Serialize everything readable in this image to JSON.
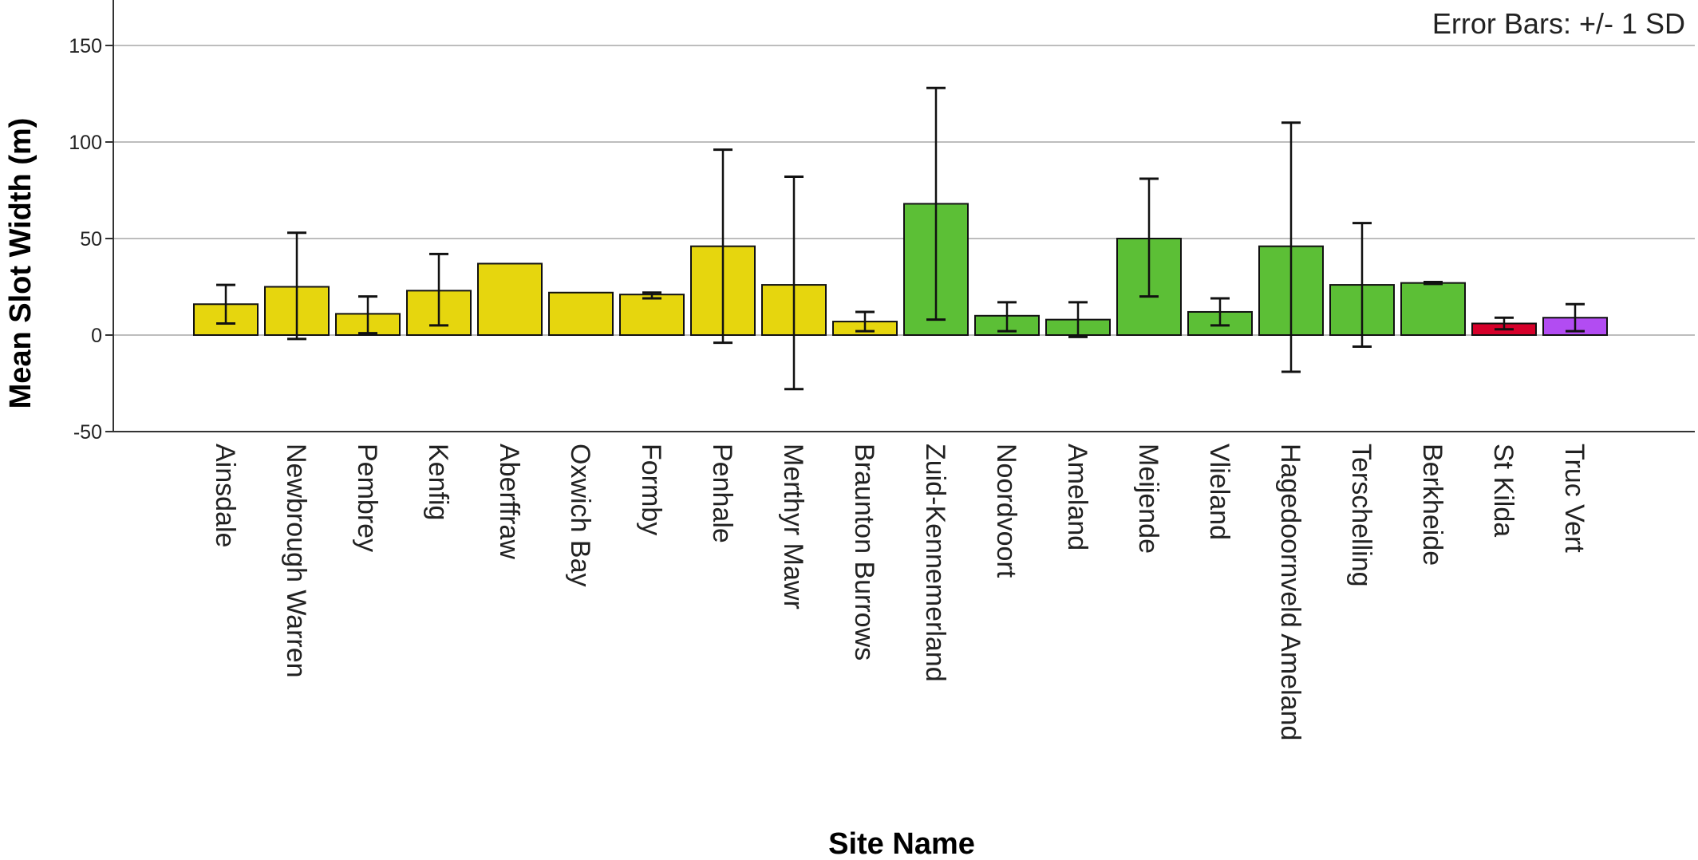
{
  "chart_data": {
    "type": "bar",
    "xlabel": "Site Name",
    "ylabel": "Mean Slot Width (m)",
    "annotation": "Error Bars: +/- 1 SD",
    "ylim": [
      -50,
      175
    ],
    "yticks": [
      -50,
      0,
      50,
      100,
      150
    ],
    "grid": true,
    "categories": [
      "Ainsdale",
      "Newbrough Warren",
      "Pembrey",
      "Kenfig",
      "Aberffraw",
      "Oxwich Bay",
      "Formby",
      "Penhale",
      "Merthyr Mawr",
      "Braunton Burrows",
      "Zuid-Kennemerland",
      "Noordvoort",
      "Ameland",
      "Meijende",
      "Vlieland",
      "Hagedoornveld Ameland",
      "Terschelling",
      "Berkheide",
      "St Kilda",
      "Truc Vert"
    ],
    "values": [
      16,
      25,
      11,
      23,
      37,
      22,
      21,
      46,
      26,
      7,
      68,
      10,
      8,
      50,
      12,
      46,
      26,
      27,
      6,
      9
    ],
    "error_low": [
      6,
      -2,
      1,
      5,
      null,
      null,
      19,
      -4,
      -28,
      2,
      8,
      2,
      -1,
      20,
      5,
      -19,
      -6,
      26.5,
      3,
      2
    ],
    "error_high": [
      26,
      53,
      20,
      42,
      null,
      null,
      22,
      96,
      82,
      12,
      128,
      17,
      17,
      81,
      19,
      110,
      58,
      27.5,
      9,
      16
    ],
    "colors": [
      "#e6d60e",
      "#e6d60e",
      "#e6d60e",
      "#e6d60e",
      "#e6d60e",
      "#e6d60e",
      "#e6d60e",
      "#e6d60e",
      "#e6d60e",
      "#e6d60e",
      "#5cbf36",
      "#5cbf36",
      "#5cbf36",
      "#5cbf36",
      "#5cbf36",
      "#5cbf36",
      "#5cbf36",
      "#5cbf36",
      "#d6002a",
      "#b24cf2"
    ]
  }
}
